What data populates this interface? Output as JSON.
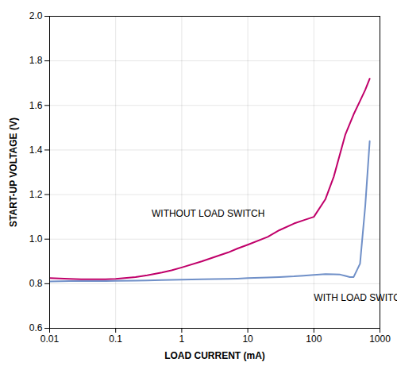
{
  "chart_data": {
    "type": "line",
    "xlabel": "LOAD CURRENT (mA)",
    "ylabel": "START-UP VOLTAGE (V)",
    "log": "x",
    "grid": true,
    "xlim": [
      0.01,
      1000
    ],
    "xticks": [
      0.01,
      0.1,
      1,
      10,
      100,
      1000
    ],
    "ylim": [
      0.6,
      2.0
    ],
    "yticks": [
      0.6,
      0.8,
      {
        "value": 1.0,
        "label": "1.0"
      },
      1.2,
      1.4,
      1.6,
      1.8,
      {
        "value": 2.0,
        "label": "2.0"
      }
    ],
    "series": [
      {
        "name": "WITHOUT LOAD SWITCH",
        "color": "#c0006a",
        "x": [
          0.01,
          0.02,
          0.03,
          0.05,
          0.07,
          0.1,
          0.2,
          0.3,
          0.5,
          0.7,
          1.0,
          2.0,
          3.0,
          5.0,
          7.0,
          10.0,
          20.0,
          30.0,
          50.0,
          70.0,
          100.0,
          150.0,
          200.0,
          300.0,
          400.0,
          500.0,
          600.0,
          700.0
        ],
        "values": [
          0.825,
          0.822,
          0.82,
          0.82,
          0.82,
          0.822,
          0.83,
          0.838,
          0.85,
          0.86,
          0.873,
          0.9,
          0.918,
          0.94,
          0.958,
          0.975,
          1.01,
          1.04,
          1.07,
          1.085,
          1.1,
          1.18,
          1.28,
          1.47,
          1.56,
          1.62,
          1.67,
          1.72
        ]
      },
      {
        "name": "WITH LOAD SWITCH",
        "color": "#7090c8",
        "x": [
          0.01,
          0.02,
          0.03,
          0.05,
          0.07,
          0.1,
          0.2,
          0.3,
          0.5,
          0.7,
          1.0,
          2.0,
          3.0,
          5.0,
          7.0,
          10.0,
          20.0,
          30.0,
          50.0,
          70.0,
          100.0,
          150.0,
          200.0,
          250.0,
          300.0,
          350.0,
          400.0,
          500.0,
          600.0,
          700.0
        ],
        "values": [
          0.81,
          0.812,
          0.812,
          0.812,
          0.812,
          0.813,
          0.814,
          0.815,
          0.816,
          0.817,
          0.818,
          0.82,
          0.821,
          0.822,
          0.823,
          0.825,
          0.828,
          0.83,
          0.833,
          0.836,
          0.84,
          0.843,
          0.842,
          0.841,
          0.835,
          0.83,
          0.83,
          0.89,
          1.15,
          1.44
        ]
      }
    ],
    "annotations": [
      {
        "text": "WITHOUT LOAD SWITCH",
        "x": 0.35,
        "y": 1.095
      },
      {
        "text": "WITH LOAD SWITCH",
        "x": 100.0,
        "y": 0.76
      }
    ]
  }
}
